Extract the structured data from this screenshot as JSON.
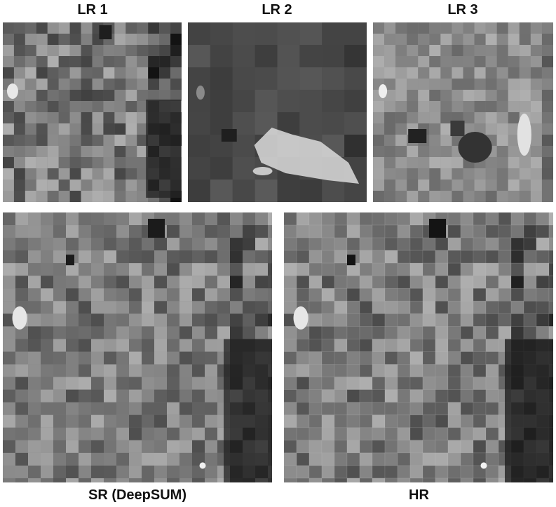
{
  "panels": [
    {
      "id": "lr1",
      "label": "LR 1"
    },
    {
      "id": "lr2",
      "label": "LR 2"
    },
    {
      "id": "lr3",
      "label": "LR 3"
    },
    {
      "id": "sr",
      "label": "SR (DeepSUM)"
    },
    {
      "id": "hr",
      "label": "HR"
    }
  ],
  "colors": {
    "background": "#ffffff",
    "label_text": "#111111",
    "field_light": "#d8d8d8",
    "field_mid": "#8a8a8a",
    "field_dark": "#2a2a2a"
  }
}
